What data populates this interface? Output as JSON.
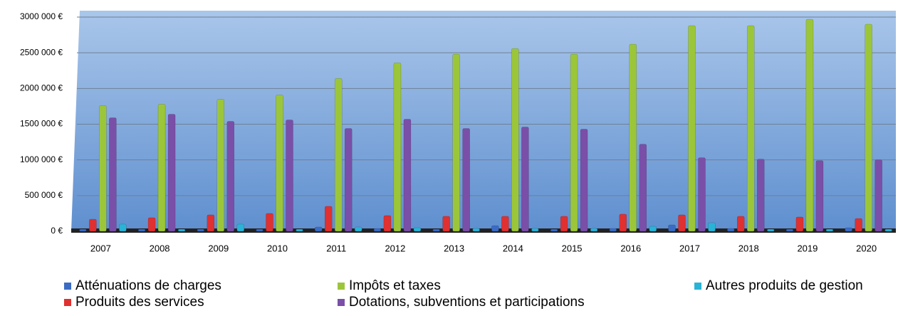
{
  "chart_data": {
    "type": "bar",
    "categories": [
      "2007",
      "2008",
      "2009",
      "2010",
      "2011",
      "2012",
      "2013",
      "2014",
      "2015",
      "2016",
      "2017",
      "2018",
      "2019",
      "2020"
    ],
    "series": [
      {
        "name": "Atténuations de charges",
        "color": "#3b6cc4",
        "values": [
          30000,
          30000,
          30000,
          30000,
          60000,
          40000,
          30000,
          80000,
          30000,
          40000,
          90000,
          40000,
          30000,
          50000
        ]
      },
      {
        "name": "Produits des services",
        "color": "#e03030",
        "values": [
          170000,
          190000,
          230000,
          250000,
          350000,
          220000,
          210000,
          210000,
          210000,
          240000,
          230000,
          210000,
          200000,
          180000
        ]
      },
      {
        "name": "Impôts et taxes",
        "color": "#9cc63a",
        "values": [
          1760000,
          1780000,
          1850000,
          1910000,
          2140000,
          2360000,
          2480000,
          2560000,
          2480000,
          2620000,
          2880000,
          2880000,
          2970000,
          2900000
        ]
      },
      {
        "name": "Dotations, subventions et participations",
        "color": "#7a4fa8",
        "values": [
          1590000,
          1640000,
          1540000,
          1560000,
          1440000,
          1570000,
          1440000,
          1460000,
          1430000,
          1220000,
          1030000,
          1010000,
          990000,
          1000000
        ]
      },
      {
        "name": "Autres produits de gestion",
        "color": "#29b3d6",
        "values": [
          100000,
          30000,
          100000,
          30000,
          60000,
          50000,
          40000,
          40000,
          40000,
          70000,
          120000,
          30000,
          30000,
          30000
        ]
      }
    ],
    "ylim": [
      0,
      3000000
    ],
    "yticks": [
      {
        "value": 0,
        "label": "0 €"
      },
      {
        "value": 500000,
        "label": "500 000 €"
      },
      {
        "value": 1000000,
        "label": "1000 000 €"
      },
      {
        "value": 1500000,
        "label": "1500 000 €"
      },
      {
        "value": 2000000,
        "label": "2000 000 €"
      },
      {
        "value": 2500000,
        "label": "2500 000 €"
      },
      {
        "value": 3000000,
        "label": "3000 000 €"
      }
    ],
    "grid": true,
    "legend": "bottom"
  }
}
